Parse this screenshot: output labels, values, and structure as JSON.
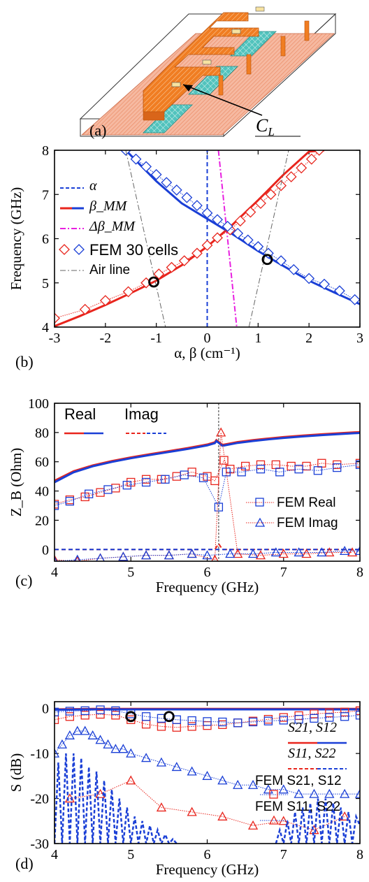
{
  "panels": {
    "a": {
      "label": "(a)",
      "annotation": "C",
      "annotation_sub": "L"
    },
    "b": {
      "label": "(b)"
    },
    "c": {
      "label": "(c)"
    },
    "d": {
      "label": "(d)"
    }
  },
  "colors": {
    "red": "#e8251d",
    "blue": "#1a3fd6",
    "magenta": "#e81fe0",
    "gray": "#666666",
    "substrate": "#f3a98c",
    "metal": "#f07d22",
    "teal": "#3fb8b2"
  },
  "chart_data": [
    {
      "panel": "b",
      "type": "line",
      "xlabel": "α, β (cm⁻¹)",
      "ylabel": "Frequency (GHz)",
      "xlim": [
        -3,
        3
      ],
      "ylim": [
        4,
        8
      ],
      "xticks": [
        "-3",
        "-2",
        "-1",
        "0",
        "1",
        "2",
        "3"
      ],
      "yticks": [
        "4",
        "5",
        "6",
        "7",
        "8"
      ],
      "legend": [
        "α",
        "β_MM",
        "Δβ_MM",
        "FEM 30 cells",
        "Air line"
      ],
      "series": [
        {
          "name": "α",
          "style": "dash",
          "color": "#1a3fd6",
          "x": [
            0,
            0
          ],
          "y": [
            4,
            8
          ]
        },
        {
          "name": "β_MM (left-handed branch)",
          "style": "solid",
          "color": "#e8251d",
          "x": [
            -3.0,
            -2.5,
            -2.0,
            -1.5,
            -1.0,
            -0.5,
            0.0,
            0.5,
            1.0,
            1.5,
            2.0,
            2.3
          ],
          "y": [
            4.02,
            4.25,
            4.5,
            4.77,
            5.05,
            5.4,
            5.82,
            6.32,
            6.87,
            7.45,
            7.97,
            8.0
          ]
        },
        {
          "name": "β_MM (right-handed branch)",
          "style": "solid",
          "color": "#1a3fd6",
          "x": [
            -1.6,
            -1.0,
            -0.5,
            0.0,
            0.5,
            1.0,
            1.5,
            2.0,
            2.5,
            3.0
          ],
          "y": [
            8.0,
            7.3,
            6.8,
            6.45,
            6.1,
            5.72,
            5.38,
            5.05,
            4.78,
            4.52
          ]
        },
        {
          "name": "Δβ_MM",
          "style": "dashdot",
          "color": "#e81fe0",
          "x": [
            0.22,
            0.58
          ],
          "y": [
            8.0,
            4.0
          ]
        },
        {
          "name": "FEM 30 cells",
          "style": "markers-diamond",
          "color": "#e8251d",
          "x": [
            -3.0,
            -2.4,
            -2.0,
            -1.55,
            -1.2,
            -0.95,
            -0.7,
            -0.45,
            -0.2,
            0.0,
            0.2,
            0.45,
            0.65,
            0.85,
            1.05,
            1.25,
            1.45,
            1.65,
            1.85,
            2.05,
            2.2
          ],
          "y": [
            4.2,
            4.4,
            4.6,
            4.8,
            5.0,
            5.2,
            5.35,
            5.5,
            5.67,
            5.85,
            6.02,
            6.2,
            6.4,
            6.6,
            6.8,
            7.0,
            7.2,
            7.4,
            7.6,
            7.8,
            8.0
          ]
        },
        {
          "name": "FEM 30 cells",
          "style": "markers-diamond",
          "color": "#1a3fd6",
          "x": [
            -1.6,
            -1.4,
            -1.2,
            -1.0,
            -0.8,
            -0.6,
            -0.4,
            -0.2,
            0.0,
            0.2,
            0.4,
            0.6,
            0.8,
            1.0,
            1.2,
            1.45,
            1.7,
            2.0,
            2.3,
            2.6,
            2.9
          ],
          "y": [
            8.0,
            7.8,
            7.63,
            7.45,
            7.27,
            7.1,
            6.93,
            6.75,
            6.58,
            6.43,
            6.28,
            6.12,
            5.97,
            5.82,
            5.67,
            5.5,
            5.3,
            5.1,
            4.97,
            4.82,
            4.62
          ]
        },
        {
          "name": "Air line",
          "style": "dashdot",
          "color": "#666666",
          "x": [
            -1.6,
            -0.82
          ],
          "y": [
            8.0,
            4.0
          ]
        },
        {
          "name": "Air line",
          "style": "dashdot",
          "color": "#666666",
          "x": [
            0.82,
            1.6
          ],
          "y": [
            4.0,
            8.0
          ]
        }
      ],
      "markers_open_circle": [
        {
          "x": -1.05,
          "y": 5.02
        },
        {
          "x": 1.18,
          "y": 5.53
        }
      ]
    },
    {
      "panel": "c",
      "type": "line",
      "xlabel": "Frequency (GHz)",
      "ylabel": "Z_B (Ohm)",
      "xlim": [
        4,
        8
      ],
      "ylim": [
        -8,
        100
      ],
      "xticks": [
        "4",
        "5",
        "6",
        "7",
        "8"
      ],
      "yticks": [
        "0",
        "20",
        "40",
        "60",
        "80",
        "100"
      ],
      "legend_top": [
        "Real",
        "Imag"
      ],
      "legend": [
        "FEM Real",
        "FEM Imag"
      ],
      "vline_x": 6.15,
      "series": [
        {
          "name": "Real",
          "style": "solid",
          "color": "#e8251d",
          "x": [
            4.0,
            4.25,
            4.5,
            4.75,
            5.0,
            5.25,
            5.5,
            5.75,
            6.0,
            6.1,
            6.12,
            6.2,
            6.4,
            6.6,
            6.8,
            7.0,
            7.25,
            7.5,
            7.75,
            8.0
          ],
          "y": [
            47,
            53.5,
            57.5,
            60.5,
            63,
            65.2,
            67.3,
            69.4,
            71.8,
            73.3,
            74.8,
            71.5,
            73.5,
            74.8,
            75.9,
            76.9,
            77.9,
            78.8,
            79.6,
            80.3
          ]
        },
        {
          "name": "Real",
          "style": "solid",
          "color": "#1a3fd6",
          "x": [
            4.0,
            4.25,
            4.5,
            4.75,
            5.0,
            5.25,
            5.5,
            5.75,
            6.0,
            6.1,
            6.12,
            6.2,
            6.4,
            6.6,
            6.8,
            7.0,
            7.25,
            7.5,
            7.75,
            8.0
          ],
          "y": [
            46,
            52.8,
            56.9,
            59.9,
            62.4,
            64.6,
            66.7,
            68.8,
            71.2,
            72.7,
            74.2,
            70.9,
            72.9,
            74.2,
            75.3,
            76.3,
            77.3,
            78.2,
            79.0,
            79.7
          ]
        },
        {
          "name": "Imag",
          "style": "dash",
          "color": "#e8251d",
          "x": [
            4.0,
            6.1,
            6.15,
            6.2,
            8.0
          ],
          "y": [
            0,
            0,
            4,
            0,
            0
          ]
        },
        {
          "name": "Imag",
          "style": "dash",
          "color": "#1a3fd6",
          "x": [
            4.0,
            8.0
          ],
          "y": [
            0,
            0
          ]
        },
        {
          "name": "FEM Real",
          "style": "markers-square",
          "color": "#e8251d",
          "x": [
            4.0,
            4.2,
            4.4,
            4.6,
            4.8,
            5.0,
            5.2,
            5.4,
            5.6,
            5.8,
            6.0,
            6.1,
            6.22,
            6.3,
            6.5,
            6.7,
            6.9,
            7.1,
            7.3,
            7.5,
            7.7,
            8.0
          ],
          "y": [
            31,
            34,
            36,
            39,
            42,
            46,
            48,
            48,
            50,
            53,
            50,
            47,
            61,
            55,
            57,
            58,
            58,
            57,
            57,
            59,
            58,
            59
          ]
        },
        {
          "name": "FEM Real",
          "style": "markers-square",
          "color": "#1a3fd6",
          "x": [
            4.0,
            4.2,
            4.45,
            4.7,
            4.95,
            5.2,
            5.45,
            5.7,
            5.95,
            6.15,
            6.25,
            6.45,
            6.7,
            6.95,
            7.2,
            7.45,
            7.7,
            8.0
          ],
          "y": [
            30,
            33,
            38,
            41,
            44,
            46,
            48,
            51,
            49,
            29,
            53,
            53,
            55,
            53,
            55,
            54,
            56,
            58
          ]
        },
        {
          "name": "FEM Imag",
          "style": "markers-triangle",
          "color": "#e8251d",
          "x": [
            4.0,
            4.3,
            4.6,
            4.9,
            5.2,
            5.5,
            5.8,
            6.1,
            6.18,
            6.4,
            6.7,
            7.0,
            7.3,
            7.6,
            7.9
          ],
          "y": [
            -7,
            -8,
            -6,
            -5,
            -4,
            -4,
            -3,
            -7,
            80,
            -3,
            -4,
            -3,
            -3,
            -2,
            -2
          ]
        },
        {
          "name": "FEM Imag",
          "style": "markers-triangle",
          "color": "#1a3fd6",
          "x": [
            4.0,
            4.3,
            4.6,
            4.9,
            5.2,
            5.5,
            5.8,
            6.0,
            6.3,
            6.6,
            6.9,
            7.2,
            7.5,
            7.8,
            8.0
          ],
          "y": [
            -8,
            -7,
            -6,
            -5,
            -4,
            -4,
            -3,
            -4,
            -3,
            -3,
            -2,
            -2,
            -2,
            -1,
            -1
          ]
        }
      ]
    },
    {
      "panel": "d",
      "type": "line",
      "xlabel": "Frequency (GHz)",
      "ylabel": "S (dB)",
      "xlim": [
        4,
        8
      ],
      "ylim": [
        -30,
        1.5
      ],
      "xticks": [
        "4",
        "5",
        "6",
        "7",
        "8"
      ],
      "yticks": [
        "-30",
        "-20",
        "-10",
        "0"
      ],
      "legend": [
        "S21, S12",
        "S11, S22",
        "FEM S21, S12",
        "FEM S11, S22"
      ],
      "series": [
        {
          "name": "S21, S12",
          "style": "solid",
          "color": "#e8251d",
          "x": [
            4.0,
            4.5,
            5.0,
            5.5,
            6.0,
            6.5,
            7.0,
            7.5,
            8.0
          ],
          "y": [
            -0.2,
            -0.1,
            -0.1,
            -0.1,
            -0.1,
            -0.1,
            -0.1,
            -0.1,
            -0.1
          ]
        },
        {
          "name": "S21, S12",
          "style": "solid",
          "color": "#1a3fd6",
          "x": [
            4.0,
            4.5,
            5.0,
            5.5,
            6.0,
            6.5,
            7.0,
            7.5,
            8.0
          ],
          "y": [
            -0.3,
            -0.2,
            -0.2,
            -0.2,
            -0.2,
            -0.2,
            -0.2,
            -0.2,
            -0.2
          ]
        },
        {
          "name": "FEM S21, S12",
          "style": "markers-square",
          "color": "#e8251d",
          "x": [
            4.0,
            4.2,
            4.4,
            4.6,
            4.8,
            5.0,
            5.2,
            5.4,
            5.6,
            5.8,
            6.0,
            6.2,
            6.4,
            6.6,
            6.8,
            7.0,
            7.2,
            7.4,
            7.6,
            7.8,
            8.0
          ],
          "y": [
            -2.5,
            -1.8,
            -1.5,
            -1.3,
            -1.5,
            -2.5,
            -3.5,
            -4,
            -4.2,
            -4,
            -3.8,
            -3.6,
            -3.2,
            -2.8,
            -2.4,
            -2.0,
            -1.6,
            -1.2,
            -1.0,
            -0.8,
            -0.5
          ]
        },
        {
          "name": "FEM S21, S12",
          "style": "markers-square",
          "color": "#1a3fd6",
          "x": [
            4.0,
            4.2,
            4.4,
            4.6,
            4.8,
            5.0,
            5.2,
            5.4,
            5.6,
            5.8,
            6.0,
            6.2,
            6.4,
            6.6,
            6.8,
            7.0,
            7.2,
            7.4,
            7.6,
            7.8,
            8.0
          ],
          "y": [
            -0.8,
            -0.6,
            -0.5,
            -0.3,
            -0.5,
            -1.2,
            -1.8,
            -2.2,
            -2.5,
            -2.7,
            -2.9,
            -3.0,
            -3.2,
            -3.0,
            -2.8,
            -2.6,
            -2.4,
            -2.2,
            -2.0,
            -1.8,
            -1.5
          ]
        },
        {
          "name": "FEM S11, S22",
          "style": "markers-triangle",
          "color": "#1a3fd6",
          "x": [
            4.0,
            4.1,
            4.2,
            4.3,
            4.4,
            4.5,
            4.6,
            4.7,
            4.8,
            4.9,
            5.0,
            5.2,
            5.4,
            5.6,
            5.8,
            6.0,
            6.2,
            6.4,
            6.6,
            6.8,
            7.0,
            7.2,
            7.4,
            7.6,
            7.8,
            8.0
          ],
          "y": [
            -10,
            -8,
            -6,
            -5,
            -5,
            -6,
            -7,
            -8,
            -9,
            -9,
            -10,
            -11,
            -12,
            -13,
            -14,
            -15,
            -16,
            -17,
            -17,
            -18,
            -18,
            -19,
            -19,
            -19,
            -19,
            -19
          ]
        },
        {
          "name": "FEM S11, S22",
          "style": "markers-triangle",
          "color": "#e8251d",
          "x": [
            4.2,
            4.6,
            5.0,
            5.4,
            5.8,
            6.2,
            6.6,
            7.0,
            7.4,
            7.8
          ],
          "y": [
            -20,
            -19,
            -16,
            -22,
            -23,
            -24,
            -26,
            -25,
            -27,
            -24
          ]
        },
        {
          "name": "S11, S22",
          "style": "dash-oscillating",
          "color": "#1a3fd6",
          "x": [
            4.0,
            4.05,
            4.1,
            4.15,
            4.2,
            4.25,
            4.3,
            4.35,
            4.4,
            4.45,
            4.5,
            4.55,
            4.6,
            4.65,
            4.7,
            4.75,
            4.8,
            4.85,
            4.9,
            4.95,
            5.0,
            5.05,
            5.1,
            5.15,
            5.2,
            5.25,
            5.3,
            5.35,
            5.4,
            5.45,
            5.5,
            5.55,
            5.6
          ],
          "y": [
            -30,
            -12,
            -30,
            -10,
            -30,
            -10,
            -30,
            -11,
            -30,
            -13,
            -30,
            -14,
            -30,
            -16,
            -30,
            -18,
            -30,
            -20,
            -30,
            -22,
            -30,
            -24,
            -30,
            -25,
            -30,
            -26,
            -30,
            -27,
            -30,
            -28,
            -30,
            -29,
            -30
          ]
        },
        {
          "name": "S11, S22",
          "style": "dash-oscillating",
          "color": "#1a3fd6",
          "x": [
            6.9,
            6.95,
            7.0,
            7.05,
            7.1,
            7.15,
            7.2,
            7.25,
            7.3,
            7.35,
            7.4,
            7.45,
            7.5,
            7.55,
            7.6,
            7.65,
            7.7,
            7.75,
            7.8,
            7.85,
            7.9,
            7.95,
            8.0
          ],
          "y": [
            -30,
            -27,
            -30,
            -25,
            -30,
            -23,
            -30,
            -22,
            -30,
            -21,
            -30,
            -20,
            -30,
            -20,
            -30,
            -21,
            -30,
            -22,
            -30,
            -23,
            -30,
            -24,
            -26
          ]
        }
      ],
      "markers_open_circle": [
        {
          "x": 5.0,
          "y": -1.8
        },
        {
          "x": 5.5,
          "y": -1.8
        }
      ]
    }
  ]
}
